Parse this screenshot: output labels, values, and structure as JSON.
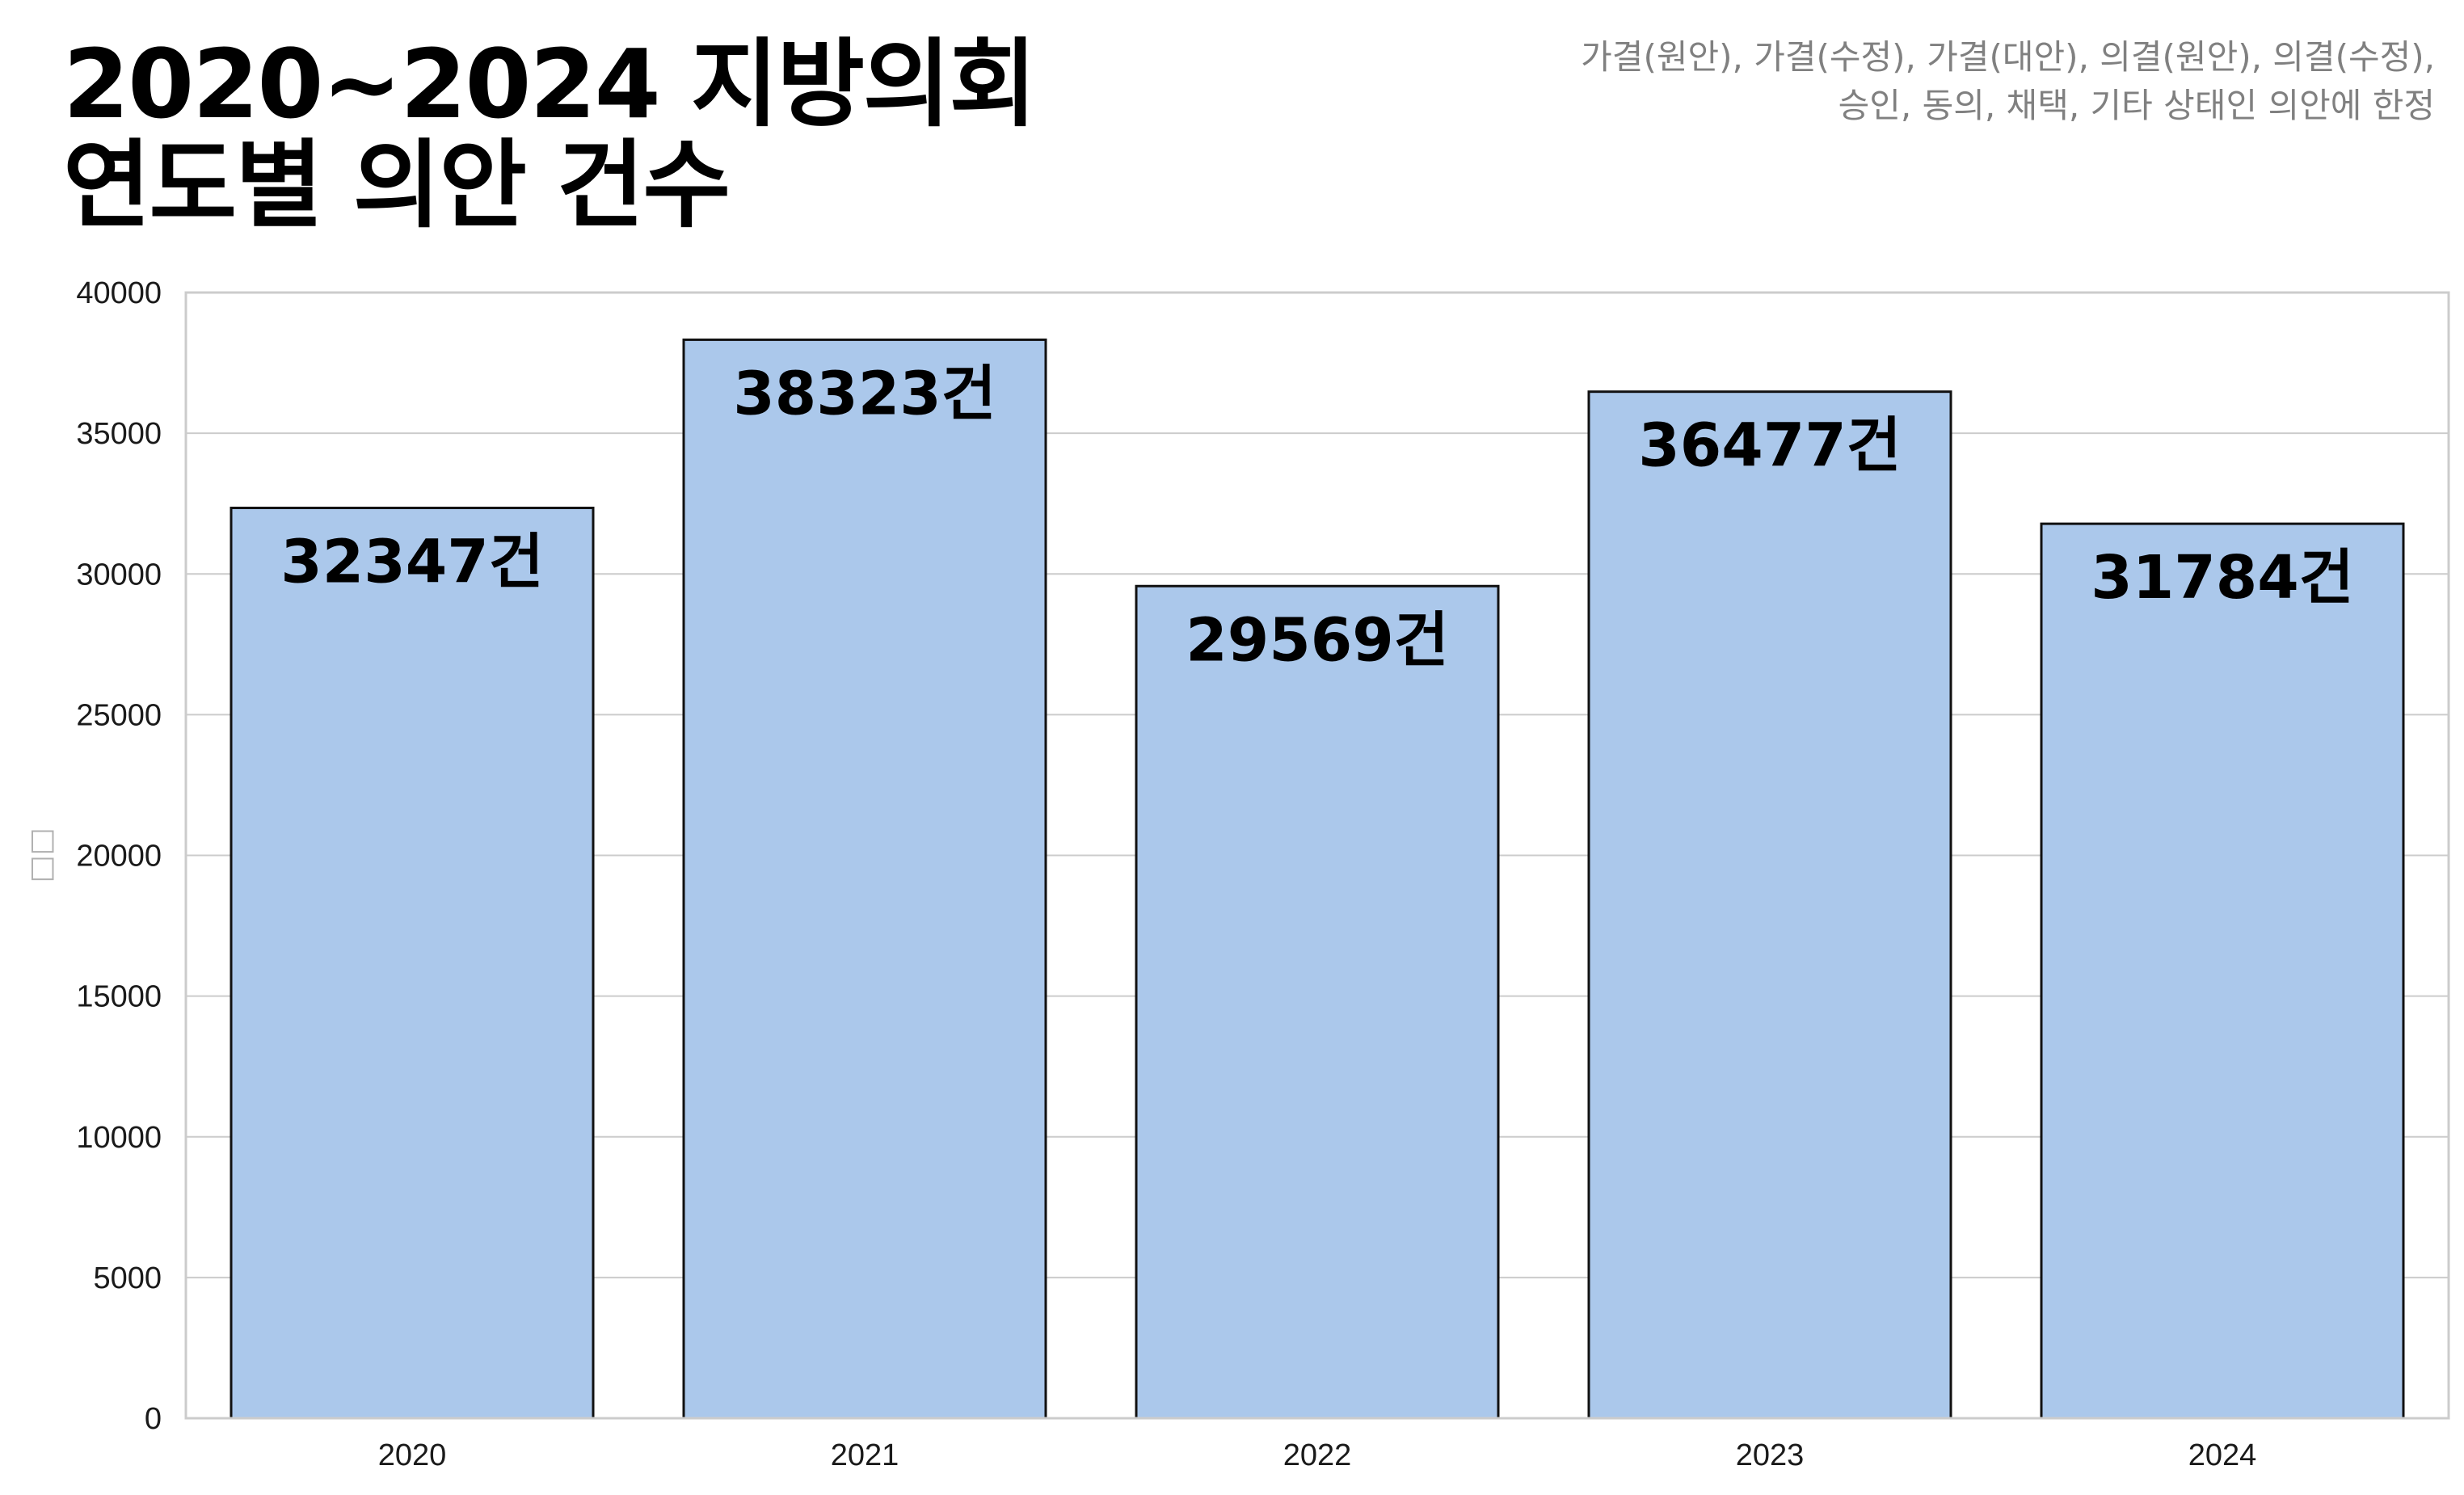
{
  "title": {
    "line1": "2020~2024 지방의회",
    "line2": "연도별 의안 건수"
  },
  "note": {
    "line1": "가결(원안), 가결(수정), 가결(대안), 의결(원안), 의결(수정),",
    "line2": "승인, 동의, 채택, 기타 상태인 의안에 한정"
  },
  "chart_data": {
    "type": "bar",
    "categories": [
      "2020",
      "2021",
      "2022",
      "2023",
      "2024"
    ],
    "values": [
      32347,
      38323,
      29569,
      36477,
      31784
    ],
    "value_labels": [
      "32347건",
      "38323건",
      "29569건",
      "36477건",
      "31784건"
    ],
    "ylabel": "□□",
    "xlabel": "",
    "ylim": [
      0,
      40000
    ],
    "yticks": [
      0,
      5000,
      10000,
      15000,
      20000,
      25000,
      30000,
      35000,
      40000
    ],
    "grid": "horizontal",
    "legend": "none",
    "colors": {
      "bar_fill": "#abc8eb",
      "bar_edge": "#111111",
      "grid": "#cccccc",
      "frame": "#cccccc"
    }
  }
}
